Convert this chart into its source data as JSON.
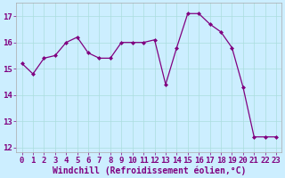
{
  "x": [
    0,
    1,
    2,
    3,
    4,
    5,
    6,
    7,
    8,
    9,
    10,
    11,
    12,
    13,
    14,
    15,
    16,
    17,
    18,
    19,
    20,
    21,
    22,
    23
  ],
  "y": [
    15.2,
    14.8,
    15.4,
    15.5,
    16.0,
    16.2,
    15.6,
    15.4,
    15.4,
    16.0,
    16.0,
    16.0,
    16.1,
    14.4,
    15.8,
    17.1,
    17.1,
    16.7,
    16.4,
    15.8,
    14.3,
    12.4,
    12.4,
    12.4
  ],
  "xlim": [
    -0.5,
    23.5
  ],
  "ylim": [
    11.8,
    17.5
  ],
  "yticks": [
    12,
    13,
    14,
    15,
    16,
    17
  ],
  "xticks": [
    0,
    1,
    2,
    3,
    4,
    5,
    6,
    7,
    8,
    9,
    10,
    11,
    12,
    13,
    14,
    15,
    16,
    17,
    18,
    19,
    20,
    21,
    22,
    23
  ],
  "xlabel": "Windchill (Refroidissement éolien,°C)",
  "line_color": "#800080",
  "marker_color": "#800080",
  "bg_color": "#cceeff",
  "grid_color": "#aadddd",
  "xlabel_fontsize": 7,
  "tick_fontsize": 6.5
}
